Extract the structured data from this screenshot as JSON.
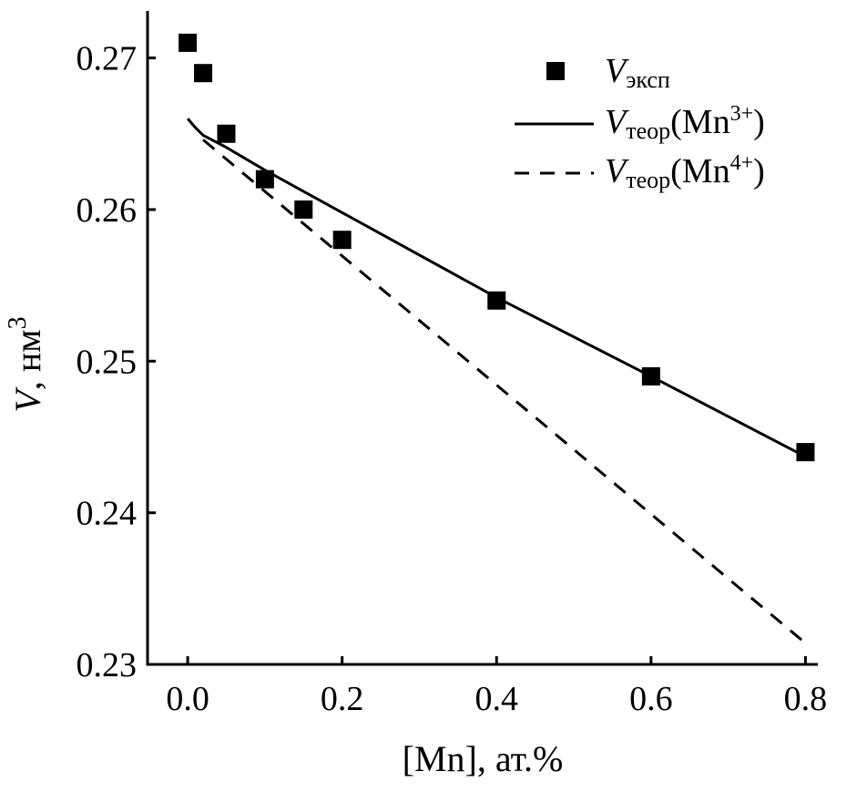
{
  "chart_data": {
    "type": "scatter",
    "title": "",
    "xlabel": "[Mn], ат.%",
    "ylabel_main": "V",
    "ylabel_unit": ", нм",
    "ylabel_sup": "3",
    "xlim": [
      -0.052,
      0.816
    ],
    "ylim": [
      0.23,
      0.2731
    ],
    "grid": false,
    "legend_placement": "top-right",
    "xticks": [
      0.0,
      0.2,
      0.4,
      0.6,
      0.8
    ],
    "xtick_labels": [
      "0.0",
      "0.2",
      "0.4",
      "0.6",
      "0.8"
    ],
    "yticks": [
      0.23,
      0.24,
      0.25,
      0.26,
      0.27
    ],
    "ytick_labels": [
      "0.23",
      "0.24",
      "0.25",
      "0.26",
      "0.27"
    ],
    "series": [
      {
        "name": "Vэксп",
        "legend_main": "V",
        "legend_sub": "эксп",
        "legend_rest": "",
        "legend_sup": "",
        "legend_close": "",
        "style": "square-marker",
        "x": [
          0.0,
          0.02,
          0.05,
          0.1,
          0.15,
          0.2,
          0.4,
          0.6,
          0.8
        ],
        "y": [
          0.271,
          0.269,
          0.265,
          0.262,
          0.26,
          0.258,
          0.254,
          0.249,
          0.244
        ]
      },
      {
        "name": "Vтеор(Mn3+)",
        "legend_main": "V",
        "legend_sub": "теор",
        "legend_rest": "(Mn",
        "legend_sup": "3+",
        "legend_close": ")",
        "style": "solid",
        "x": [
          0.0,
          0.01,
          0.02,
          0.05,
          0.1,
          0.2,
          0.4,
          0.6,
          0.8
        ],
        "y": [
          0.266,
          0.2654,
          0.2649,
          0.2641,
          0.2626,
          0.2598,
          0.2542,
          0.249,
          0.2437
        ]
      },
      {
        "name": "Vтеор(Mn4+)",
        "legend_main": "V",
        "legend_sub": "теор",
        "legend_rest": "(Mn",
        "legend_sup": "4+",
        "legend_close": ")",
        "style": "dashed",
        "x": [
          0.02,
          0.8
        ],
        "y": [
          0.2646,
          0.2314
        ]
      }
    ]
  },
  "colors": {
    "ink": "#000000",
    "background": "#ffffff"
  }
}
